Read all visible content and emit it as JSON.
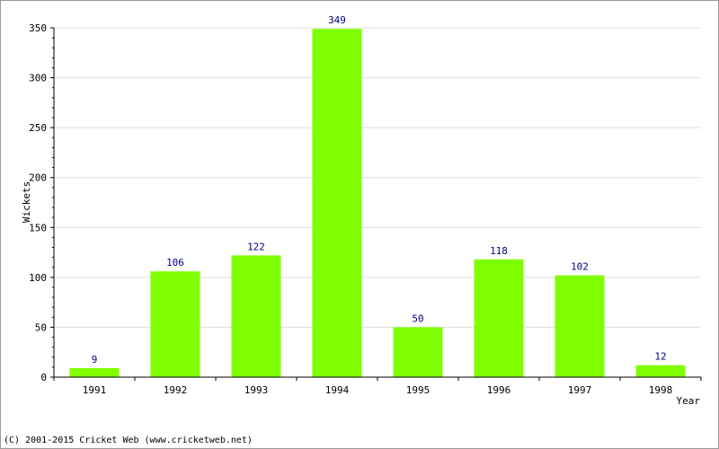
{
  "chart_data": {
    "type": "bar",
    "categories": [
      "1991",
      "1992",
      "1993",
      "1994",
      "1995",
      "1996",
      "1997",
      "1998"
    ],
    "values": [
      9,
      106,
      122,
      349,
      50,
      118,
      102,
      12
    ],
    "data_labels": [
      "9",
      "106",
      "122",
      "349",
      "50",
      "118",
      "102",
      "12"
    ],
    "xlabel": "Year",
    "ylabel": "Wickets",
    "ylim": [
      0,
      350
    ],
    "yticks": [
      0,
      50,
      100,
      150,
      200,
      250,
      300,
      350
    ],
    "ytick_labels": [
      "0",
      "50",
      "100",
      "150",
      "200",
      "250",
      "300",
      "350"
    ],
    "grid": true,
    "colors": {
      "bar": "#7fff00",
      "data_label": "#000080",
      "grid": "#dddddd",
      "axis": "#000000"
    }
  },
  "footer": {
    "copyright": "(C) 2001-2015 Cricket Web (www.cricketweb.net)"
  }
}
